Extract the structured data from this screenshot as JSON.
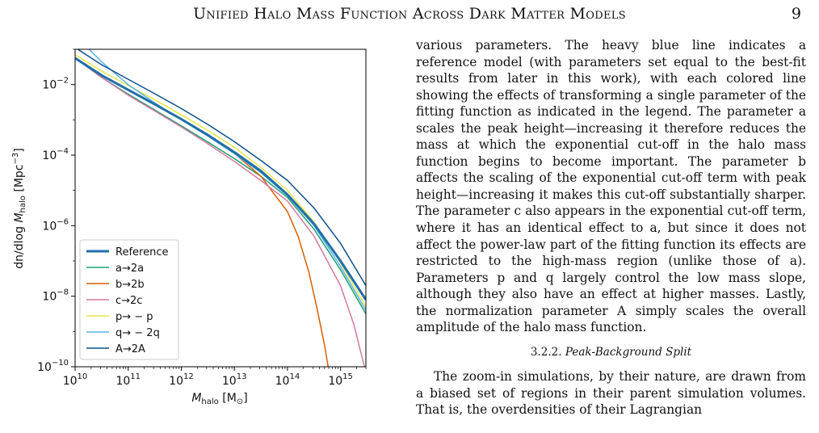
{
  "header": {
    "running_title": "Unified Halo Mass Function Across Dark Matter Models",
    "page_number": "9"
  },
  "chart_data": {
    "type": "line",
    "xlabel": "M_halo [M☉]",
    "ylabel": "dn/dlog M_halo [Mpc⁻³]",
    "xscale": "log",
    "yscale": "log",
    "xlim": [
      10000000000.0,
      3000000000000000.0
    ],
    "ylim": [
      1e-10,
      0.1
    ],
    "x_ticks": [
      "10",
      "11",
      "12",
      "13",
      "14",
      "15"
    ],
    "y_ticks": [
      "-2",
      "-4",
      "-6",
      "-8",
      "-10"
    ],
    "legend_position": "lower-left",
    "grid": false,
    "series": [
      {
        "name": "Reference",
        "color": "#1f6fa8",
        "width": 3.0,
        "x": [
          10,
          10.5,
          11,
          11.5,
          12,
          12.5,
          13,
          13.5,
          14,
          14.5,
          15,
          15.477
        ],
        "y": [
          -1.25,
          -1.74,
          -2.15,
          -2.56,
          -2.98,
          -3.43,
          -3.92,
          -4.45,
          -5.12,
          -5.95,
          -7.0,
          -8.1
        ]
      },
      {
        "name": "a→2a",
        "color": "#1f9e74",
        "width": 1.5,
        "x": [
          10,
          10.5,
          11,
          11.5,
          12,
          12.5,
          13,
          13.5,
          14,
          14.5,
          15,
          15.477
        ],
        "y": [
          -1.25,
          -1.8,
          -2.27,
          -2.72,
          -3.17,
          -3.63,
          -4.1,
          -4.6,
          -5.2,
          -6.1,
          -7.25,
          -8.5
        ]
      },
      {
        "name": "b→2b",
        "color": "#d95f02",
        "width": 1.5,
        "x": [
          10,
          10.5,
          11,
          11.5,
          12,
          12.5,
          13,
          13.5,
          14,
          14.2,
          14.4,
          14.55,
          14.7,
          14.8
        ],
        "y": [
          -1.25,
          -1.74,
          -2.15,
          -2.56,
          -2.98,
          -3.44,
          -3.95,
          -4.6,
          -5.6,
          -6.3,
          -7.3,
          -8.3,
          -9.4,
          -10.3
        ]
      },
      {
        "name": "c→2c",
        "color": "#d4789e",
        "width": 1.5,
        "x": [
          10,
          10.5,
          11,
          11.5,
          12,
          12.5,
          13,
          13.5,
          14,
          14.5,
          15,
          15.25,
          15.45
        ],
        "y": [
          -1.25,
          -1.8,
          -2.3,
          -2.75,
          -3.2,
          -3.68,
          -4.18,
          -4.72,
          -5.3,
          -6.3,
          -7.7,
          -8.8,
          -10.0
        ]
      },
      {
        "name": "p→ − p",
        "color": "#e6e64c",
        "width": 1.5,
        "x": [
          10,
          10.5,
          11,
          11.5,
          12,
          12.5,
          13,
          13.5,
          14,
          14.5,
          15,
          15.477
        ],
        "y": [
          -1.15,
          -1.62,
          -2.03,
          -2.43,
          -2.86,
          -3.3,
          -3.78,
          -4.35,
          -5.0,
          -5.9,
          -7.05,
          -8.3
        ]
      },
      {
        "name": "q→ − 2q",
        "color": "#5ab4e6",
        "width": 1.5,
        "x": [
          10,
          10.25,
          10.5,
          11,
          11.5,
          12,
          12.5,
          13,
          13.5,
          14,
          14.5,
          15,
          15.477
        ],
        "y": [
          -0.6,
          -0.98,
          -1.36,
          -2.0,
          -2.52,
          -3.0,
          -3.46,
          -3.96,
          -4.5,
          -5.15,
          -6.0,
          -7.15,
          -8.4
        ]
      },
      {
        "name": "A→2A",
        "color": "#0d4f8b",
        "width": 1.5,
        "x": [
          10,
          10.5,
          11,
          11.5,
          12,
          12.5,
          13,
          13.5,
          14,
          14.5,
          15,
          15.477
        ],
        "y": [
          -0.95,
          -1.44,
          -1.85,
          -2.26,
          -2.68,
          -3.13,
          -3.62,
          -4.15,
          -4.72,
          -5.5,
          -6.5,
          -7.7
        ]
      }
    ]
  },
  "body": {
    "para1": "various parameters. The heavy blue line indicates a reference model (with parameters set equal to the best-fit results from later in this work), with each colored line showing the effects of transforming a single parameter of the fitting function as indicated in the legend. The parameter a scales the peak height—increasing it therefore reduces the mass at which the exponential cut-off in the halo mass function begins to become important. The parameter b affects the scaling of the exponential cut-off term with peak height—increasing it makes this cut-off substantially sharper. The parameter c also appears in the exponential cut-off term, where it has an identical effect to a, but since it does not affect the power-law part of the fitting function its effects are restricted to the high-mass region (unlike those of a). Parameters p and q largely control the low mass slope, although they also have an effect at higher masses. Lastly, the normalization parameter A simply scales the overall amplitude of the halo mass function.",
    "subsection_number": "3.2.2.",
    "subsection_title": "Peak-Background Split",
    "para2": "The zoom-in simulations, by their nature, are drawn from a biased set of regions in their parent simulation volumes. That is, the overdensities of their Lagrangian"
  }
}
